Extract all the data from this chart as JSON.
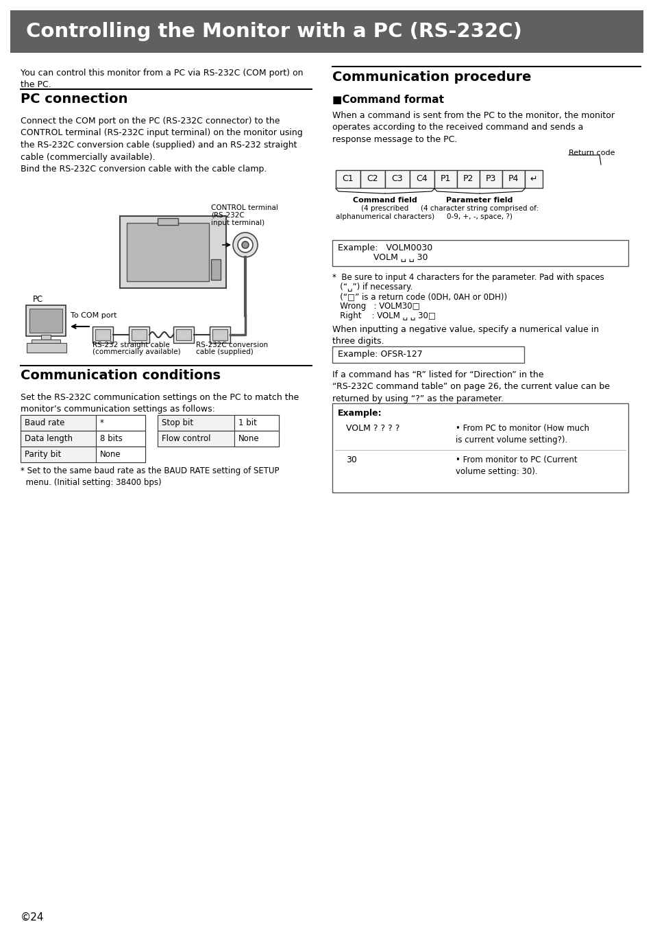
{
  "title": "Controlling the Monitor with a PC (RS-232C)",
  "title_bg": "#606060",
  "title_color": "#ffffff",
  "bg_color": "#ffffff",
  "text_color": "#000000",
  "intro_text": "You can control this monitor from a PC via RS-232C (COM port) on\nthe PC.",
  "section1_title": "PC connection",
  "section1_para": "Connect the COM port on the PC (RS-232C connector) to the\nCONTROL terminal (RS-232C input terminal) on the monitor using\nthe RS-232C conversion cable (supplied) and an RS-232 straight\ncable (commercially available).\nBind the RS-232C conversion cable with the cable clamp.",
  "section2_title": "Communication conditions",
  "section2_para": "Set the RS-232C communication settings on the PC to match the\nmonitor’s communication settings as follows:",
  "table1": [
    [
      "Baud rate",
      "*"
    ],
    [
      "Data length",
      "8 bits"
    ],
    [
      "Parity bit",
      "None"
    ]
  ],
  "table2": [
    [
      "Stop bit",
      "1 bit"
    ],
    [
      "Flow control",
      "None"
    ]
  ],
  "footnote": "* Set to the same baud rate as the BAUD RATE setting of SETUP\n  menu. (Initial setting: 38400 bps)",
  "section3_title": "Communication procedure",
  "section3_sub": "■Command format",
  "section3_para": "When a command is sent from the PC to the monitor, the monitor\noperates according to the received command and sends a\nresponse message to the PC.",
  "cmd_fields": [
    "C1",
    "C2",
    "C3",
    "C4",
    "P1",
    "P2",
    "P3",
    "P4",
    "↵"
  ],
  "return_code_label": "Return code",
  "example_box1_line1": "Example:   VOLM0030",
  "example_box1_line2": "             VOLM ␣ ␣ 30",
  "note_lines": [
    "*  Be sure to input 4 characters for the parameter. Pad with spaces",
    "   (“␣”) if necessary.",
    "   (“□” is a return code (0DH, 0AH or 0DH))",
    "   Wrong   : VOLM30□",
    "   Right    : VOLM ␣ ␣ 30□"
  ],
  "between_note": "When inputting a negative value, specify a numerical value in\nthree digits.",
  "example_box2": "Example: OFSR-127",
  "last_para": "If a command has “R” listed for “Direction” in the\n“RS-232C command table” on page 26, the current value can be\nreturned by using “?” as the parameter.",
  "example_box3_title": "Example:",
  "ex3_row1_left": "VOLM ? ? ? ?",
  "ex3_row1_right": "• From PC to monitor (How much\nis current volume setting?).",
  "ex3_row2_left": "30",
  "ex3_row2_right": "• From monitor to PC (Current\nvolume setting: 30)."
}
